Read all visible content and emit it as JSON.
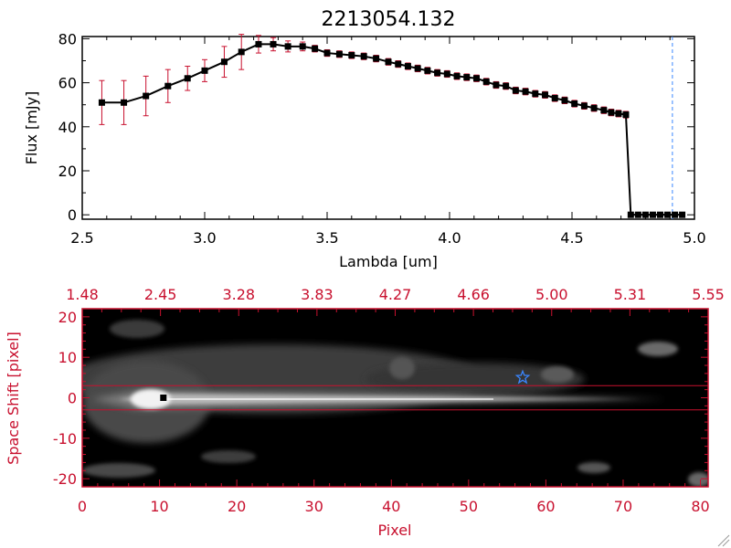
{
  "chart_data": [
    {
      "type": "line",
      "title": "2213054.132",
      "xlabel": "Lambda [um]",
      "ylabel": "Flux [mJy]",
      "xlim": [
        2.5,
        5.0
      ],
      "ylim": [
        -2,
        81
      ],
      "xticks": [
        "2.5",
        "3.0",
        "3.5",
        "4.0",
        "4.5",
        "5.0"
      ],
      "yticks": [
        "0",
        "20",
        "40",
        "60",
        "80"
      ],
      "grid": false,
      "marker_vline_x": 4.91,
      "series": [
        {
          "x": [
            2.58,
            2.67,
            2.76,
            2.85,
            2.93,
            3.0,
            3.08,
            3.15,
            3.22,
            3.28,
            3.34,
            3.4,
            3.45,
            3.5,
            3.55,
            3.6,
            3.65,
            3.7,
            3.75,
            3.79,
            3.83,
            3.87,
            3.91,
            3.95,
            3.99,
            4.03,
            4.07,
            4.11,
            4.15,
            4.19,
            4.23,
            4.27,
            4.31,
            4.35,
            4.39,
            4.43,
            4.47,
            4.51,
            4.55,
            4.59,
            4.63,
            4.66,
            4.69,
            4.72,
            4.74,
            4.77,
            4.8,
            4.83,
            4.86,
            4.89,
            4.92,
            4.95
          ],
          "y": [
            51,
            51,
            54,
            58.5,
            62,
            65.5,
            69.5,
            74,
            77.5,
            77.5,
            76.5,
            76.5,
            75.5,
            73.5,
            73,
            72.5,
            72,
            71,
            69.5,
            68.5,
            67.5,
            66.5,
            65.5,
            64.5,
            64,
            63,
            62.5,
            62,
            60.5,
            59,
            58.5,
            56.5,
            56,
            55,
            54.5,
            53,
            52,
            50.5,
            49.5,
            48.5,
            47.5,
            46.5,
            46,
            45.5,
            0,
            0,
            0,
            0,
            0,
            0,
            0,
            0
          ],
          "yerr": [
            10,
            10,
            9,
            7.5,
            5.5,
            5,
            7,
            8,
            4,
            3,
            2.5,
            2,
            1.5,
            1.5,
            1.5,
            1.5,
            1.5,
            1.5,
            1.5,
            1.5,
            1.5,
            1.5,
            1.5,
            1.5,
            1.5,
            1.5,
            1.5,
            1.5,
            1.5,
            1.5,
            1.5,
            1.5,
            1.5,
            1.5,
            1.5,
            1.5,
            1.5,
            1.5,
            1.5,
            1.5,
            1.5,
            1.5,
            1.5,
            1.5,
            1,
            1,
            1,
            1,
            1,
            1,
            1,
            1
          ]
        }
      ]
    },
    {
      "type": "heatmap",
      "xlabel": "Pixel",
      "ylabel": "Space Shift [pixel]",
      "xlim": [
        0,
        81
      ],
      "ylim": [
        -22,
        22
      ],
      "xticks": [
        "0",
        "10",
        "20",
        "30",
        "40",
        "50",
        "60",
        "70",
        "80"
      ],
      "yticks": [
        "-20",
        "-10",
        "0",
        "10",
        "20"
      ],
      "top_axis_ticks": [
        "1.48",
        "2.45",
        "3.28",
        "3.83",
        "4.27",
        "4.66",
        "5.00",
        "5.31",
        "5.55"
      ],
      "aperture_y": [
        -3,
        3
      ],
      "source_position": [
        10.5,
        0
      ],
      "star_position": [
        57,
        5
      ],
      "colors": {
        "axis": "#c8102e",
        "star": "#3a86ff",
        "vline": "#3a86ff"
      }
    }
  ]
}
